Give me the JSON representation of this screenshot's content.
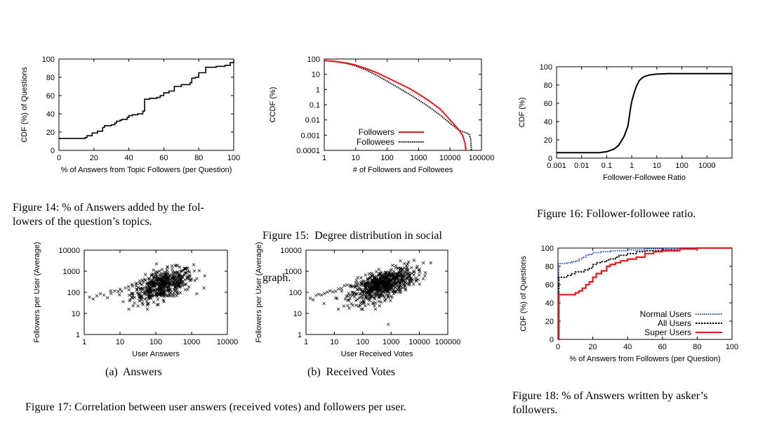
{
  "chart_data": [
    {
      "id": "fig14",
      "type": "line",
      "caption": "Figure 14: % of Answers added by the fol-lowers of the question’s topics.",
      "caption_lines": [
        "Figure 14: % of Answers added by the fol-",
        "lowers of the question’s topics."
      ],
      "xlabel": "% of Answers from Topic Followers (per Question)",
      "ylabel": "CDF (%) of Questions",
      "xlim": [
        0,
        100
      ],
      "ylim": [
        0,
        100
      ],
      "xticks": [
        "0",
        "20",
        "40",
        "60",
        "80",
        "100"
      ],
      "yticks": [
        "0",
        "20",
        "40",
        "60",
        "80",
        "100"
      ],
      "series": [
        {
          "name": "CDF",
          "color": "#000000",
          "x": [
            0,
            10,
            15,
            16,
            17,
            19,
            20,
            22,
            23,
            25,
            26,
            28,
            30,
            32,
            33,
            35,
            36,
            39,
            40,
            42,
            45,
            48,
            49,
            50,
            52,
            56,
            58,
            60,
            63,
            65,
            66,
            70,
            72,
            75,
            76,
            78,
            80,
            82,
            84,
            86,
            90,
            95,
            98,
            100
          ],
          "y": [
            13,
            13,
            14,
            16,
            16,
            19,
            19,
            21,
            21,
            25,
            27,
            27,
            28,
            30,
            32,
            33,
            34,
            36,
            38,
            39,
            40,
            43,
            56,
            56,
            57,
            58,
            60,
            63,
            65,
            65,
            70,
            72,
            72,
            74,
            79,
            80,
            85,
            85,
            91,
            91,
            92,
            93,
            96,
            99
          ]
        }
      ]
    },
    {
      "id": "fig15",
      "type": "line",
      "caption": "Figure 15: Degree distribution in social graph.",
      "caption_lines": [
        "Figure 15:  Degree distribution in social",
        "graph."
      ],
      "xlabel": "# of Followers and Followees",
      "ylabel": "CCDF (%)",
      "xscale": "log",
      "yscale": "log",
      "xlim": [
        1,
        100000
      ],
      "ylim": [
        0.0001,
        100
      ],
      "xticks": [
        "1",
        "10",
        "100",
        "1000",
        "10000",
        "100000"
      ],
      "yticks": [
        "0.0001",
        "0.001",
        "0.01",
        "0.1",
        "1",
        "10",
        "100"
      ],
      "legend": [
        "Followers",
        "Followees"
      ],
      "series": [
        {
          "name": "Followers",
          "color": "#e8191c",
          "x": [
            1,
            2,
            5,
            10,
            20,
            50,
            100,
            200,
            500,
            1000,
            2000,
            5000,
            10000,
            15000,
            20000,
            25000,
            30000,
            32000
          ],
          "y": [
            80,
            72,
            55,
            40,
            25,
            12,
            6,
            3,
            1.2,
            0.5,
            0.2,
            0.05,
            0.01,
            0.004,
            0.002,
            0.001,
            0.0003,
            0.0001
          ]
        },
        {
          "name": "Followees",
          "color": "#000000",
          "x": [
            1,
            2,
            5,
            10,
            20,
            50,
            100,
            200,
            500,
            1000,
            2000,
            5000,
            10000,
            20000,
            30000,
            40000,
            45000,
            48000
          ],
          "y": [
            80,
            70,
            52,
            35,
            20,
            8,
            3.5,
            1.5,
            0.5,
            0.2,
            0.08,
            0.02,
            0.006,
            0.002,
            0.0015,
            0.0012,
            0.0006,
            0.0001
          ]
        }
      ]
    },
    {
      "id": "fig16",
      "type": "line",
      "caption": "Figure 16: Follower-followee ratio.",
      "caption_lines": [
        "Figure 16: Follower-followee ratio."
      ],
      "xlabel": "Follower-Followee Ratio",
      "ylabel": "CDF (%)",
      "xscale": "log",
      "xlim": [
        0.001,
        10000
      ],
      "ylim": [
        0,
        100
      ],
      "xticks": [
        "0.001",
        "0.01",
        "0.1",
        "1",
        "10",
        "100",
        "1000"
      ],
      "yticks": [
        "0",
        "20",
        "40",
        "60",
        "80",
        "100"
      ],
      "series": [
        {
          "name": "CDF",
          "color": "#000000",
          "x": [
            0.001,
            0.01,
            0.05,
            0.1,
            0.2,
            0.3,
            0.5,
            0.7,
            0.9,
            1,
            1.2,
            1.5,
            2,
            3,
            5,
            10,
            30,
            100,
            1000,
            10000
          ],
          "y": [
            6,
            6,
            6,
            7,
            10,
            14,
            24,
            35,
            55,
            62,
            70,
            78,
            85,
            89,
            91,
            92,
            92.5,
            92.5,
            92.5,
            92.5
          ]
        }
      ]
    },
    {
      "id": "fig17a",
      "type": "scatter",
      "subcaption": "(a)  Answers",
      "xlabel": "User Answers",
      "ylabel": "Followers per User (Average)",
      "xscale": "log",
      "yscale": "log",
      "xlim": [
        1,
        10000
      ],
      "ylim": [
        1,
        10000
      ],
      "xticks": [
        "1",
        "10",
        "100",
        "1000",
        "10000"
      ],
      "yticks": [
        "1",
        "10",
        "100",
        "1000",
        "10000"
      ],
      "marker": "x"
    },
    {
      "id": "fig17b",
      "type": "scatter",
      "subcaption": "(b)  Received Votes",
      "xlabel": "User Received Votes",
      "ylabel": "Followers per User (Average)",
      "xscale": "log",
      "yscale": "log",
      "xlim": [
        1,
        100000
      ],
      "ylim": [
        1,
        10000
      ],
      "xticks": [
        "1",
        "10",
        "100",
        "1000",
        "10000",
        "100000"
      ],
      "yticks": [
        "1",
        "10",
        "100",
        "1000",
        "10000"
      ],
      "marker": "x"
    },
    {
      "id": "fig18",
      "type": "line",
      "caption": "Figure 18: % of Answers written by asker’s followers.",
      "caption_lines": [
        "Figure 18: % of Answers written by asker’s",
        "followers."
      ],
      "xlabel": "% of Answers from Followers (per Question)",
      "ylabel": "CDF (%) of Questions",
      "xlim": [
        0,
        100
      ],
      "ylim": [
        0,
        100
      ],
      "xticks": [
        "0",
        "20",
        "40",
        "60",
        "80",
        "100"
      ],
      "yticks": [
        "0",
        "20",
        "40",
        "60",
        "80",
        "100"
      ],
      "legend": [
        "Normal Users",
        "All Users",
        "Super Users"
      ],
      "series": [
        {
          "name": "Normal Users",
          "color": "#1f3fd6",
          "dash": "dotted",
          "x": [
            0,
            0.5,
            5,
            8,
            10,
            12,
            14,
            16,
            18,
            20,
            25,
            30,
            40,
            50,
            60,
            70,
            80,
            100
          ],
          "y": [
            0,
            83,
            84,
            85,
            86,
            88,
            90,
            92,
            93,
            95,
            96,
            97,
            98,
            99,
            99.5,
            100,
            100,
            100
          ]
        },
        {
          "name": "All Users",
          "color": "#000000",
          "dash": "dashed",
          "x": [
            0,
            0.5,
            5,
            8,
            10,
            15,
            18,
            20,
            22,
            25,
            28,
            30,
            33,
            35,
            40,
            45,
            50,
            60,
            70,
            80,
            100
          ],
          "y": [
            0,
            68,
            70,
            72,
            74,
            76,
            78,
            82,
            84,
            85,
            87,
            88,
            90,
            92,
            94,
            96,
            97,
            98,
            99,
            100,
            100
          ]
        },
        {
          "name": "Super Users",
          "color": "#e8191c",
          "dash": "solid",
          "x": [
            0,
            0.5,
            8,
            10,
            12,
            14,
            16,
            18,
            20,
            22,
            25,
            28,
            30,
            33,
            36,
            40,
            45,
            50,
            55,
            60,
            70,
            80,
            100
          ],
          "y": [
            0,
            49,
            49,
            51,
            53,
            56,
            60,
            63,
            68,
            72,
            75,
            80,
            82,
            84,
            86,
            88,
            90,
            94,
            96,
            97,
            99,
            100,
            100
          ]
        }
      ]
    }
  ],
  "fig17_caption": "Figure 17: Correlation between user answers (received votes) and followers per user."
}
